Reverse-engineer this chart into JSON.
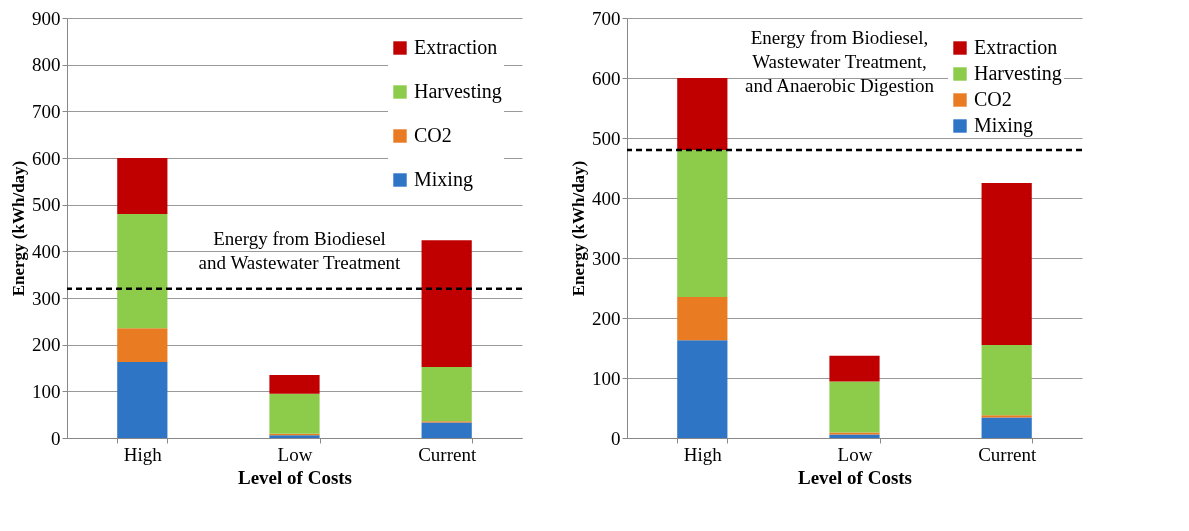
{
  "chart_data": [
    {
      "type": "bar",
      "stacked": true,
      "xlabel": "Level of Costs",
      "ylabel": "Energy (kWh/day)",
      "categories": [
        "High",
        "Low",
        "Current"
      ],
      "ylim": [
        0,
        900
      ],
      "yticks": [
        0,
        100,
        200,
        300,
        400,
        500,
        600,
        700,
        800,
        900
      ],
      "grid": "y",
      "legend": "top right",
      "series": [
        {
          "name": "Mixing",
          "color": "#2e75c6",
          "values": [
            163,
            6,
            33
          ]
        },
        {
          "name": "CO2",
          "color": "#e97b22",
          "values": [
            72,
            3,
            3
          ]
        },
        {
          "name": "Harvesting",
          "color": "#8dcc4b",
          "values": [
            245,
            86,
            116
          ]
        },
        {
          "name": "Extraction",
          "color": "#c00000",
          "values": [
            120,
            40,
            272
          ]
        }
      ],
      "ref_lines": [
        {
          "axis": "y",
          "value": 320,
          "label": "Energy from Biodiesel\nand Wastewater Treatment",
          "color": "#000000",
          "line_style": "dashed"
        }
      ]
    },
    {
      "type": "bar",
      "stacked": true,
      "xlabel": "Level of Costs",
      "ylabel": "Energy (kWh/day)",
      "categories": [
        "High",
        "Low",
        "Current"
      ],
      "ylim": [
        0,
        700
      ],
      "yticks": [
        0,
        100,
        200,
        300,
        400,
        500,
        600,
        700
      ],
      "grid": "y",
      "legend": "top right",
      "series": [
        {
          "name": "Mixing",
          "color": "#2e75c6",
          "values": [
            163,
            6,
            34
          ]
        },
        {
          "name": "CO2",
          "color": "#e97b22",
          "values": [
            72,
            3,
            4
          ]
        },
        {
          "name": "Harvesting",
          "color": "#8dcc4b",
          "values": [
            245,
            85,
            117
          ]
        },
        {
          "name": "Extraction",
          "color": "#c00000",
          "values": [
            120,
            43,
            270
          ]
        }
      ],
      "ref_lines": [
        {
          "axis": "y",
          "value": 480,
          "label": "Energy from Biodiesel,\nWastewater Treatment,\nand Anaerobic Digestion",
          "color": "#000000",
          "line_style": "dashed"
        }
      ]
    }
  ]
}
